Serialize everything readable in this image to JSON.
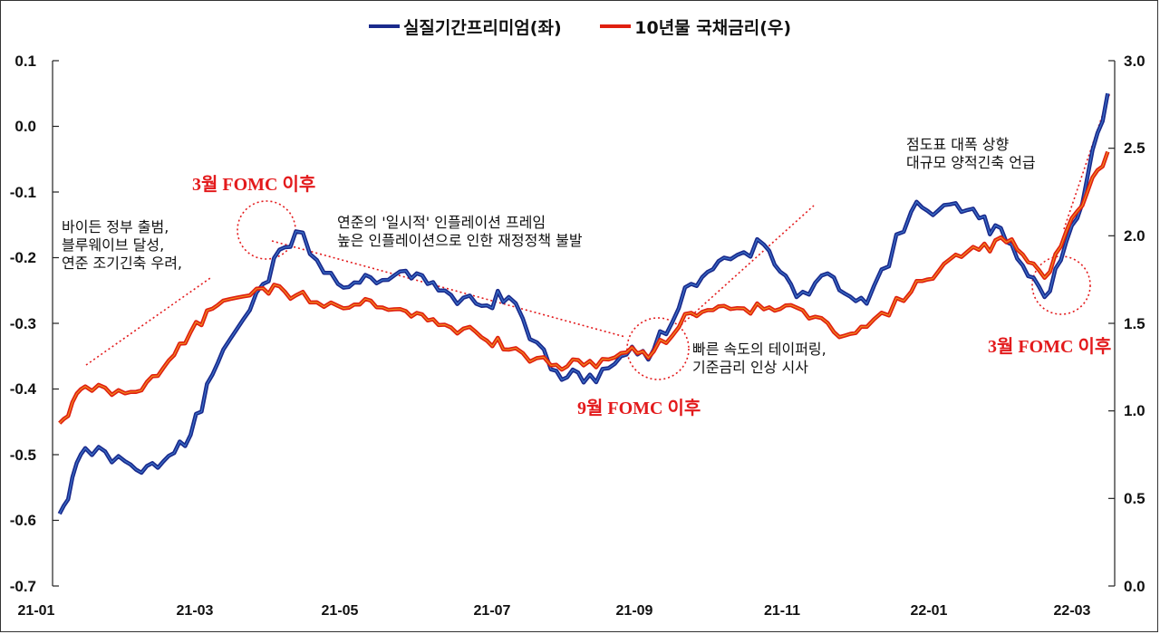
{
  "legend": {
    "series1": "실질기간프리미엄(좌)",
    "series2": "10년물 국채금리(우)"
  },
  "colors": {
    "series1": "#1a2a8c",
    "series1_highlight": "#4a90e2",
    "series2": "#e02010",
    "series2_highlight": "#f5a623",
    "annotation": "#e31a1c",
    "text": "#111111"
  },
  "axes": {
    "left_ticks": [
      "0.1",
      "0.0",
      "-0.1",
      "-0.2",
      "-0.3",
      "-0.4",
      "-0.5",
      "-0.6",
      "-0.7"
    ],
    "right_ticks": [
      "3.0",
      "2.5",
      "2.0",
      "1.5",
      "1.0",
      "0.5",
      "0.0"
    ],
    "x_ticks": [
      "21-01",
      "21-03",
      "21-05",
      "21-07",
      "21-09",
      "21-11",
      "22-01",
      "22-03"
    ]
  },
  "annotations": {
    "note1": [
      "바이든 정부 출범,",
      "블루웨이브 달성,",
      "연준 조기긴축 우려,"
    ],
    "note2": [
      "연준의 '일시적' 인플레이션 프레임",
      "높은 인플레이션으로 인한 재정정책 불발"
    ],
    "note3": [
      "빠른 속도의 테이퍼링,",
      "기준금리 인상 시사"
    ],
    "note4": [
      "점도표 대폭 상향",
      "대규모 양적긴축 언급"
    ],
    "fomc_mar21": "3월 FOMC 이후",
    "fomc_sep21": "9월 FOMC 이후",
    "fomc_mar22": "3월 FOMC 이후"
  },
  "chart_data": {
    "type": "line",
    "title": "",
    "xlabel": "",
    "ylabel_left": "실질기간프리미엄",
    "ylabel_right": "10년물 국채금리",
    "ylim_left": [
      -0.7,
      0.1
    ],
    "ylim_right": [
      0.0,
      3.0
    ],
    "x_tick_labels": [
      "21-01",
      "21-03",
      "21-05",
      "21-07",
      "21-09",
      "21-11",
      "22-01",
      "22-03"
    ],
    "legend_position": "top",
    "grid": false,
    "x": [
      "21-01-04",
      "21-01-15",
      "21-02-01",
      "21-02-15",
      "21-03-01",
      "21-03-15",
      "21-04-01",
      "21-04-15",
      "21-05-03",
      "21-05-17",
      "21-06-01",
      "21-06-15",
      "21-07-01",
      "21-07-15",
      "21-08-02",
      "21-08-16",
      "21-09-01",
      "21-09-15",
      "21-10-01",
      "21-10-15",
      "21-11-01",
      "21-11-15",
      "21-12-01",
      "21-12-15",
      "22-01-03",
      "22-01-17",
      "22-02-01",
      "22-02-15",
      "22-03-01",
      "22-03-15",
      "22-03-28"
    ],
    "series": [
      {
        "name": "실질기간프리미엄(좌)",
        "axis": "left",
        "values": [
          -0.59,
          -0.49,
          -0.51,
          -0.52,
          -0.47,
          -0.34,
          -0.24,
          -0.16,
          -0.24,
          -0.23,
          -0.22,
          -0.25,
          -0.27,
          -0.26,
          -0.37,
          -0.39,
          -0.35,
          -0.34,
          -0.24,
          -0.2,
          -0.18,
          -0.26,
          -0.23,
          -0.27,
          -0.13,
          -0.12,
          -0.14,
          -0.18,
          -0.26,
          -0.14,
          0.05
        ]
      },
      {
        "name": "10년물 국채금리(우)",
        "axis": "right",
        "values": [
          0.93,
          1.14,
          1.1,
          1.2,
          1.45,
          1.63,
          1.7,
          1.66,
          1.6,
          1.63,
          1.57,
          1.49,
          1.45,
          1.35,
          1.26,
          1.26,
          1.33,
          1.34,
          1.56,
          1.6,
          1.58,
          1.59,
          1.45,
          1.48,
          1.68,
          1.84,
          1.92,
          1.98,
          1.76,
          2.14,
          2.48
        ]
      }
    ]
  }
}
